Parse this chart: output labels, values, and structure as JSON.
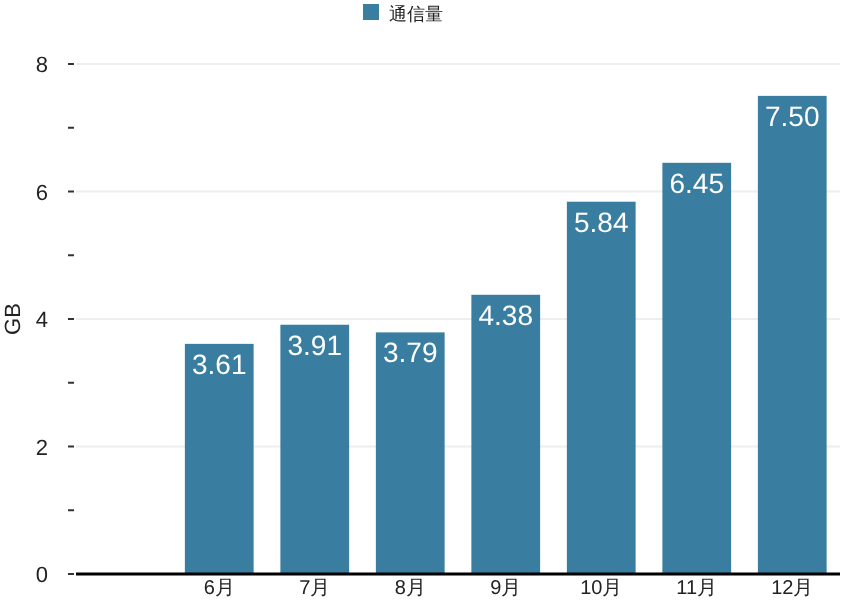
{
  "chart_data": {
    "type": "bar",
    "ylabel": "GB",
    "categories": [
      null,
      "6月",
      "7月",
      "8月",
      "9月",
      "10月",
      "11月",
      "12月"
    ],
    "series": [
      {
        "name": "通信量",
        "color": "#397ea1",
        "values": [
          null,
          3.61,
          3.91,
          3.79,
          4.38,
          5.84,
          6.45,
          7.5
        ],
        "value_labels": [
          null,
          "3.61",
          "3.91",
          "3.79",
          "4.38",
          "5.84",
          "6.45",
          "7.50"
        ]
      }
    ],
    "ylim": [
      0,
      8
    ],
    "yticks": [
      0,
      {
        "value": 1,
        "label": null
      },
      2,
      {
        "value": 3,
        "label": null
      },
      4,
      {
        "value": 5,
        "label": null
      },
      6,
      {
        "value": 7,
        "label": null
      },
      8
    ],
    "grid": "y",
    "legend": "top"
  }
}
